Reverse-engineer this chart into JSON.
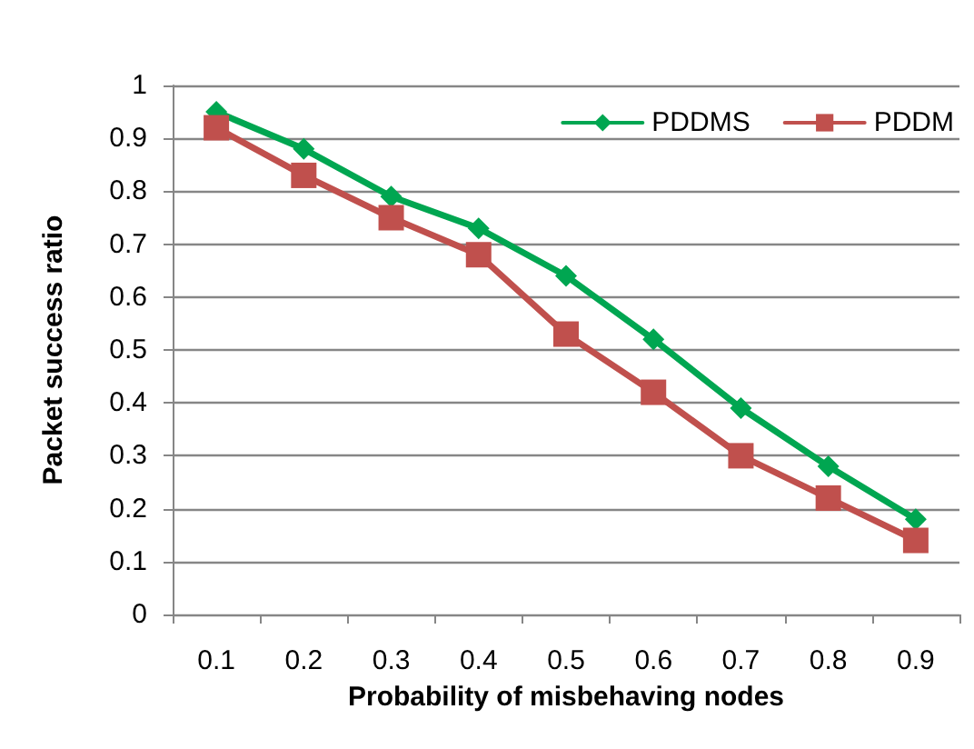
{
  "chart_data": {
    "type": "line",
    "xlabel": "Probability of misbehaving nodes",
    "ylabel": "Packet success ratio",
    "categories": [
      "0.1",
      "0.2",
      "0.3",
      "0.4",
      "0.5",
      "0.6",
      "0.7",
      "0.8",
      "0.9"
    ],
    "series": [
      {
        "name": "PDDMS",
        "color": "#00a651",
        "marker": "diamond",
        "values": [
          0.95,
          0.88,
          0.79,
          0.73,
          0.64,
          0.52,
          0.39,
          0.28,
          0.18
        ]
      },
      {
        "name": "PDDM",
        "color": "#c0504d",
        "marker": "square",
        "values": [
          0.92,
          0.83,
          0.75,
          0.68,
          0.53,
          0.42,
          0.3,
          0.22,
          0.14
        ]
      }
    ],
    "ylim": [
      0,
      1
    ],
    "yticks": [
      0,
      0.1,
      0.2,
      0.3,
      0.4,
      0.5,
      0.6,
      0.7,
      0.8,
      0.9,
      1
    ],
    "grid": "y",
    "legend": "top right",
    "line_style": "solid"
  }
}
